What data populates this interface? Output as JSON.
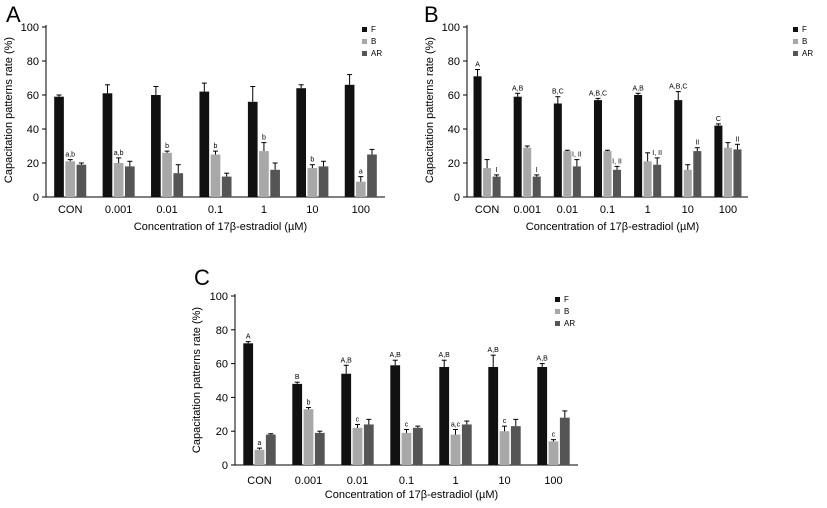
{
  "colors": {
    "F": "#111111",
    "B": "#a8a8a8",
    "AR": "#555555",
    "axis": "#000000"
  },
  "chart_data": [
    {
      "type": "bar",
      "panel_label": "A",
      "categories": [
        "CON",
        "0.001",
        "0.01",
        "0.1",
        "1",
        "10",
        "100"
      ],
      "xlabel": "Concentration of 17β-estradiol (µM)",
      "ylabel": "Capacitation patterns rate (%)",
      "ylim": [
        0,
        100
      ],
      "yticks": [
        "0",
        "20",
        "40",
        "60",
        "80",
        "100"
      ],
      "legend_position": "top-right",
      "series": [
        {
          "name": "F",
          "values": [
            59,
            61,
            60,
            62,
            56,
            64,
            66
          ],
          "errors": [
            1,
            5,
            5,
            5,
            9,
            2,
            6
          ],
          "labels": [
            "",
            "",
            "",
            "",
            "",
            "",
            ""
          ]
        },
        {
          "name": "B",
          "values": [
            21,
            20,
            26,
            25,
            27,
            17,
            9
          ],
          "errors": [
            1,
            3,
            1,
            2,
            5,
            2,
            3
          ],
          "labels": [
            "a,b",
            "a,b",
            "b",
            "b",
            "b",
            "b",
            "a"
          ]
        },
        {
          "name": "AR",
          "values": [
            19,
            18,
            14,
            12,
            16,
            18,
            25
          ],
          "errors": [
            1,
            3,
            5,
            2,
            4,
            3,
            3
          ],
          "labels": [
            "",
            "",
            "",
            "",
            "",
            "",
            ""
          ]
        }
      ]
    },
    {
      "type": "bar",
      "panel_label": "B",
      "categories": [
        "CON",
        "0.001",
        "0.01",
        "0.1",
        "1",
        "10",
        "100"
      ],
      "xlabel": "Concentration of 17β-estradiol (µM)",
      "ylabel": "Capacitation patterns rate (%)",
      "ylim": [
        0,
        100
      ],
      "yticks": [
        "0",
        "20",
        "40",
        "60",
        "80",
        "100"
      ],
      "legend_position": "top-right",
      "series": [
        {
          "name": "F",
          "values": [
            71,
            59,
            55,
            57,
            60,
            57,
            42
          ],
          "errors": [
            4,
            2,
            4,
            1,
            1,
            5,
            1
          ],
          "labels": [
            "A",
            "A,B",
            "B,C",
            "A,B,C",
            "A,B",
            "A,B,C",
            "C"
          ]
        },
        {
          "name": "B",
          "values": [
            17,
            29,
            27,
            27,
            21,
            16,
            29
          ],
          "errors": [
            5,
            1,
            0.5,
            0.5,
            5,
            3,
            3
          ],
          "labels": [
            "",
            "",
            "",
            "",
            "",
            "",
            ""
          ]
        },
        {
          "name": "AR",
          "values": [
            12,
            12,
            18,
            16,
            19,
            27,
            28
          ],
          "errors": [
            1,
            1,
            4,
            2,
            4,
            2,
            3
          ],
          "labels": [
            "I",
            "I",
            "I, II",
            "I, II",
            "I, II",
            "II",
            "II"
          ]
        }
      ]
    },
    {
      "type": "bar",
      "panel_label": "C",
      "categories": [
        "CON",
        "0.001",
        "0.01",
        "0.1",
        "1",
        "10",
        "100"
      ],
      "xlabel": "Concentration of 17β-estradiol (µM)",
      "ylabel": "Capacitation patterns rate (%)",
      "ylim": [
        0,
        100
      ],
      "yticks": [
        "0",
        "20",
        "40",
        "60",
        "80",
        "100"
      ],
      "legend_position": "top-right",
      "series": [
        {
          "name": "F",
          "values": [
            72,
            48,
            54,
            59,
            58,
            58,
            58
          ],
          "errors": [
            1,
            1,
            5,
            3,
            4,
            7,
            2
          ],
          "labels": [
            "A",
            "B",
            "A,B",
            "A,B",
            "A,B",
            "A,B",
            "A,B"
          ]
        },
        {
          "name": "B",
          "values": [
            9,
            33,
            22,
            19,
            18,
            20,
            14
          ],
          "errors": [
            1,
            1,
            2,
            2,
            3,
            3,
            1
          ],
          "labels": [
            "a",
            "b",
            "c",
            "c",
            "a,c",
            "c",
            "c"
          ]
        },
        {
          "name": "AR",
          "values": [
            18,
            19,
            24,
            22,
            24,
            23,
            28
          ],
          "errors": [
            0.5,
            1,
            3,
            1,
            2,
            4,
            4
          ],
          "labels": [
            "",
            "",
            "",
            "",
            "",
            "",
            ""
          ]
        }
      ]
    }
  ]
}
